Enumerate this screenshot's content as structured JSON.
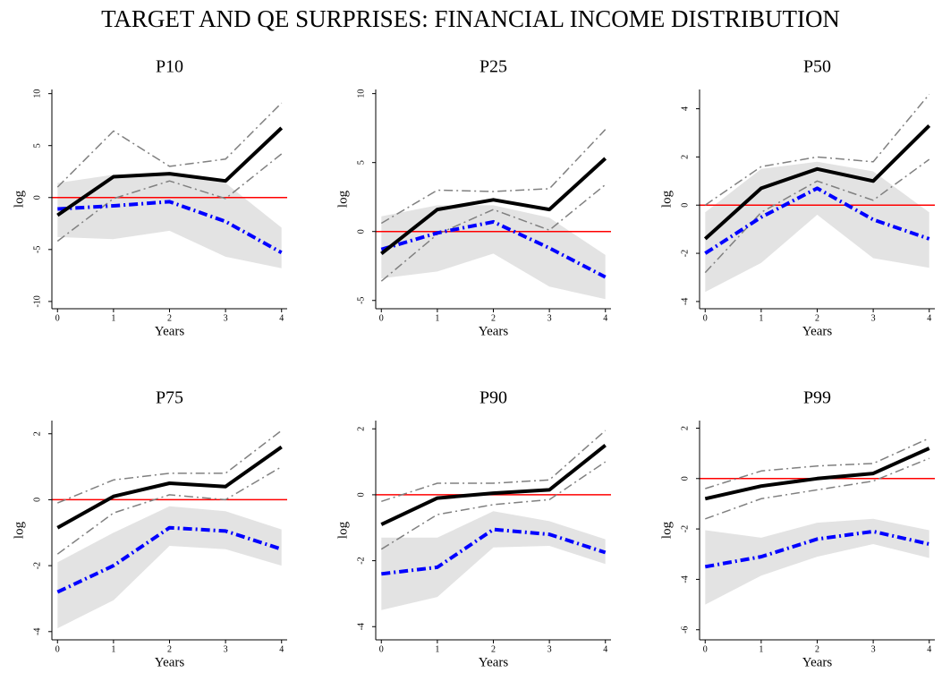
{
  "title": "TARGET AND QE SURPRISES: FINANCIAL INCOME DISTRIBUTION",
  "chart_data": [
    {
      "type": "line",
      "title": "P10",
      "xlabel": "Years",
      "ylabel": "log",
      "x": [
        0,
        1,
        2,
        3,
        4
      ],
      "xlim": [
        -0.1,
        4.1
      ],
      "xticks": [
        0,
        1,
        2,
        3,
        4
      ],
      "ylim": [
        -10.7,
        10.4
      ],
      "yticks": [
        -10,
        -5,
        0,
        5,
        10
      ],
      "hline": {
        "value": 0,
        "color": "#ff0000"
      },
      "band": {
        "color": "#e3e3e3",
        "upper": [
          1.4,
          2.2,
          2.2,
          1.4,
          -2.9
        ],
        "lower": [
          -3.8,
          -4.0,
          -3.2,
          -5.7,
          -6.8
        ]
      },
      "series": [
        {
          "color": "#808080",
          "style": "dashdot",
          "width": 1.5,
          "values": [
            1.0,
            6.4,
            3.0,
            3.7,
            9.1
          ]
        },
        {
          "color": "#808080",
          "style": "dashdot",
          "width": 1.5,
          "values": [
            -4.2,
            -0.1,
            1.6,
            -0.1,
            4.2
          ]
        },
        {
          "color": "#0000ff",
          "style": "dashdot",
          "width": 4,
          "values": [
            -1.1,
            -0.8,
            -0.4,
            -2.3,
            -5.3
          ]
        },
        {
          "color": "#000000",
          "style": "solid",
          "width": 4,
          "values": [
            -1.7,
            2.0,
            2.3,
            1.6,
            6.7
          ]
        }
      ]
    },
    {
      "type": "line",
      "title": "P25",
      "xlabel": "Years",
      "ylabel": "log",
      "x": [
        0,
        1,
        2,
        3,
        4
      ],
      "xlim": [
        -0.1,
        4.1
      ],
      "xticks": [
        0,
        1,
        2,
        3,
        4
      ],
      "ylim": [
        -5.6,
        10.3
      ],
      "yticks": [
        -5,
        0,
        5,
        10
      ],
      "hline": {
        "value": 0,
        "color": "#ff0000"
      },
      "band": {
        "color": "#e3e3e3",
        "upper": [
          1.1,
          1.9,
          1.9,
          1.0,
          -1.7
        ],
        "lower": [
          -3.4,
          -2.9,
          -1.6,
          -4.0,
          -4.9
        ]
      },
      "series": [
        {
          "color": "#808080",
          "style": "dashdot",
          "width": 1.5,
          "values": [
            0.6,
            3.0,
            2.9,
            3.1,
            7.4
          ]
        },
        {
          "color": "#808080",
          "style": "dashdot",
          "width": 1.5,
          "values": [
            -3.6,
            -0.2,
            1.6,
            0.1,
            3.4
          ]
        },
        {
          "color": "#0000ff",
          "style": "dashdot",
          "width": 4,
          "values": [
            -1.3,
            -0.1,
            0.7,
            -1.2,
            -3.3
          ]
        },
        {
          "color": "#000000",
          "style": "solid",
          "width": 4,
          "values": [
            -1.6,
            1.6,
            2.3,
            1.6,
            5.3
          ]
        }
      ]
    },
    {
      "type": "line",
      "title": "P50",
      "xlabel": "Years",
      "ylabel": "log",
      "x": [
        0,
        1,
        2,
        3,
        4
      ],
      "xlim": [
        -0.1,
        4.1
      ],
      "xticks": [
        0,
        1,
        2,
        3,
        4
      ],
      "ylim": [
        -4.3,
        4.8
      ],
      "yticks": [
        -4,
        -2,
        0,
        2,
        4
      ],
      "hline": {
        "value": 0,
        "color": "#ff0000"
      },
      "band": {
        "color": "#e3e3e3",
        "upper": [
          -0.3,
          1.5,
          1.8,
          1.4,
          -0.3
        ],
        "lower": [
          -3.6,
          -2.4,
          -0.4,
          -2.2,
          -2.6
        ]
      },
      "series": [
        {
          "color": "#808080",
          "style": "dashdot",
          "width": 1.5,
          "values": [
            0,
            1.6,
            2.0,
            1.8,
            4.6
          ]
        },
        {
          "color": "#808080",
          "style": "dashdot",
          "width": 1.5,
          "values": [
            -2.8,
            -0.3,
            1.0,
            0.2,
            1.9
          ]
        },
        {
          "color": "#0000ff",
          "style": "dashdot",
          "width": 4,
          "values": [
            -2.0,
            -0.5,
            0.7,
            -0.6,
            -1.4
          ]
        },
        {
          "color": "#000000",
          "style": "solid",
          "width": 4,
          "values": [
            -1.4,
            0.7,
            1.5,
            1.0,
            3.3
          ]
        }
      ]
    },
    {
      "type": "line",
      "title": "P75",
      "xlabel": "Years",
      "ylabel": "log",
      "x": [
        0,
        1,
        2,
        3,
        4
      ],
      "xlim": [
        -0.1,
        4.1
      ],
      "xticks": [
        0,
        1,
        2,
        3,
        4
      ],
      "ylim": [
        -4.25,
        2.4
      ],
      "yticks": [
        -4,
        -2,
        0,
        2
      ],
      "hline": {
        "value": 0,
        "color": "#ff0000"
      },
      "band": {
        "color": "#e3e3e3",
        "upper": [
          -1.9,
          -1.0,
          -0.2,
          -0.35,
          -0.9
        ],
        "lower": [
          -3.9,
          -3.05,
          -1.4,
          -1.5,
          -2.0
        ]
      },
      "series": [
        {
          "color": "#808080",
          "style": "dashdot",
          "width": 1.5,
          "values": [
            -0.1,
            0.6,
            0.8,
            0.8,
            2.1
          ]
        },
        {
          "color": "#808080",
          "style": "dashdot",
          "width": 1.5,
          "values": [
            -1.65,
            -0.4,
            0.15,
            0,
            1.0
          ]
        },
        {
          "color": "#0000ff",
          "style": "dashdot",
          "width": 4,
          "values": [
            -2.8,
            -2.0,
            -0.85,
            -0.95,
            -1.5
          ]
        },
        {
          "color": "#000000",
          "style": "solid",
          "width": 4,
          "values": [
            -0.85,
            0.1,
            0.5,
            0.4,
            1.6
          ]
        }
      ]
    },
    {
      "type": "line",
      "title": "P90",
      "xlabel": "Years",
      "ylabel": "log",
      "x": [
        0,
        1,
        2,
        3,
        4
      ],
      "xlim": [
        -0.1,
        4.1
      ],
      "xticks": [
        0,
        1,
        2,
        3,
        4
      ],
      "ylim": [
        -4.4,
        2.25
      ],
      "yticks": [
        -4,
        -2,
        0,
        2
      ],
      "hline": {
        "value": 0,
        "color": "#ff0000"
      },
      "band": {
        "color": "#e3e3e3",
        "upper": [
          -1.3,
          -1.3,
          -0.5,
          -0.8,
          -1.35
        ],
        "lower": [
          -3.5,
          -3.1,
          -1.6,
          -1.55,
          -2.1
        ]
      },
      "series": [
        {
          "color": "#808080",
          "style": "dashdot",
          "width": 1.5,
          "values": [
            -0.2,
            0.35,
            0.35,
            0.45,
            1.95
          ]
        },
        {
          "color": "#808080",
          "style": "dashdot",
          "width": 1.5,
          "values": [
            -1.65,
            -0.6,
            -0.3,
            -0.15,
            1.0
          ]
        },
        {
          "color": "#0000ff",
          "style": "dashdot",
          "width": 4,
          "values": [
            -2.4,
            -2.2,
            -1.05,
            -1.2,
            -1.75
          ]
        },
        {
          "color": "#000000",
          "style": "solid",
          "width": 4,
          "values": [
            -0.9,
            -0.1,
            0.05,
            0.15,
            1.5
          ]
        }
      ]
    },
    {
      "type": "line",
      "title": "P99",
      "xlabel": "Years",
      "ylabel": "log",
      "x": [
        0,
        1,
        2,
        3,
        4
      ],
      "xlim": [
        -0.1,
        4.1
      ],
      "xticks": [
        0,
        1,
        2,
        3,
        4
      ],
      "ylim": [
        -6.4,
        2.3
      ],
      "yticks": [
        -6,
        -4,
        -2,
        0,
        2
      ],
      "hline": {
        "value": 0,
        "color": "#ff0000"
      },
      "band": {
        "color": "#e3e3e3",
        "upper": [
          -2.05,
          -2.35,
          -1.75,
          -1.6,
          -2.05
        ],
        "lower": [
          -5.0,
          -3.85,
          -3.1,
          -2.6,
          -3.15
        ]
      },
      "series": [
        {
          "color": "#808080",
          "style": "dashdot",
          "width": 1.5,
          "values": [
            -0.4,
            0.3,
            0.5,
            0.6,
            1.6
          ]
        },
        {
          "color": "#808080",
          "style": "dashdot",
          "width": 1.5,
          "values": [
            -1.6,
            -0.8,
            -0.45,
            -0.1,
            0.8
          ]
        },
        {
          "color": "#0000ff",
          "style": "dashdot",
          "width": 4,
          "values": [
            -3.5,
            -3.1,
            -2.4,
            -2.1,
            -2.6
          ]
        },
        {
          "color": "#000000",
          "style": "solid",
          "width": 4,
          "values": [
            -0.8,
            -0.3,
            0,
            0.2,
            1.2
          ]
        }
      ]
    }
  ]
}
